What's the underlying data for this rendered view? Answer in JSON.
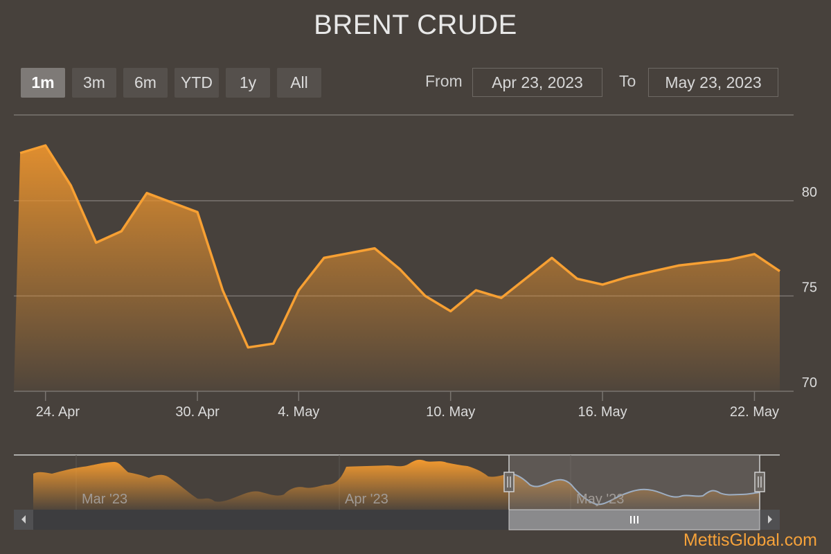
{
  "title": "BRENT CRUDE",
  "range_selector": {
    "buttons": [
      {
        "label": "1m",
        "active": true
      },
      {
        "label": "3m",
        "active": false
      },
      {
        "label": "6m",
        "active": false
      },
      {
        "label": "YTD",
        "active": false
      },
      {
        "label": "1y",
        "active": false
      },
      {
        "label": "All",
        "active": false
      }
    ],
    "from_label": "From",
    "from_value": "Apr 23, 2023",
    "to_label": "To",
    "to_value": "May 23, 2023"
  },
  "navigator": {
    "labels": [
      "Mar '23",
      "Apr '23",
      "May '23"
    ]
  },
  "credit": "MettisGlobal.com",
  "colors": {
    "background": "#47413c",
    "line": "#f7a033",
    "navigator_line": "#a9c6e8",
    "grid": "#7a7570"
  },
  "chart_data": {
    "type": "area",
    "title": "BRENT CRUDE",
    "x_tick_labels": [
      "24. Apr",
      "30. Apr",
      "4. May",
      "10. May",
      "16. May",
      "22. May"
    ],
    "y_tick_labels": [
      "70",
      "75",
      "80"
    ],
    "ylim": [
      70,
      84.5
    ],
    "grid": true,
    "series": [
      {
        "x": [
          "2023-04-23",
          "2023-04-24",
          "2023-04-25",
          "2023-04-26",
          "2023-04-27",
          "2023-04-28",
          "2023-04-30",
          "2023-05-01",
          "2023-05-02",
          "2023-05-03",
          "2023-05-04",
          "2023-05-05",
          "2023-05-07",
          "2023-05-08",
          "2023-05-09",
          "2023-05-10",
          "2023-05-11",
          "2023-05-12",
          "2023-05-14",
          "2023-05-15",
          "2023-05-16",
          "2023-05-17",
          "2023-05-18",
          "2023-05-19",
          "2023-05-21",
          "2023-05-22",
          "2023-05-23"
        ],
        "values": [
          82.5,
          82.9,
          80.8,
          77.8,
          78.4,
          80.4,
          79.4,
          75.3,
          72.3,
          72.5,
          75.3,
          77.0,
          77.5,
          76.4,
          75.0,
          74.2,
          75.3,
          74.9,
          77.0,
          75.9,
          75.6,
          76.0,
          76.3,
          76.6,
          76.9,
          77.2,
          76.3
        ]
      }
    ]
  }
}
